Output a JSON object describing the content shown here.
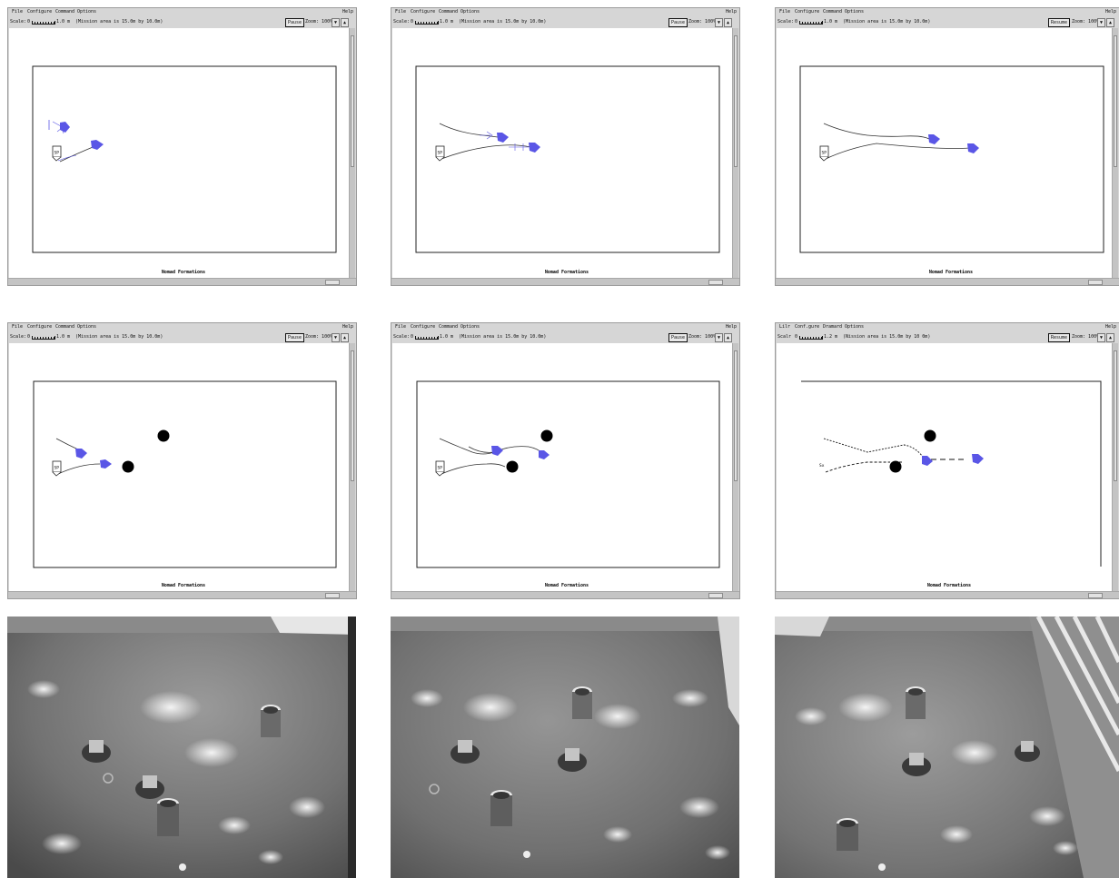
{
  "menu": {
    "file": "File",
    "configure": "Configure",
    "command": "Command",
    "options": "Options",
    "help": "Help"
  },
  "menu_blurry": {
    "file": "Lilr",
    "configure": "Conf.gure",
    "command": "Dramard",
    "options": "Options",
    "help": "Help"
  },
  "toolbar": {
    "scale_label": "Scale:",
    "scale_zero": "0",
    "scale_value": "1.0 m",
    "mission_area": "(Mission area is 15.0m by 10.0m)",
    "zoom_label": "Zoom: 100%",
    "down_arrow": "▼",
    "up_arrow": "▲"
  },
  "toolbar_blurry": {
    "scale_label": "Scalr",
    "scale_zero": "0",
    "scale_value": "1.2 m",
    "mission_area": "(Nission area is 15.0m by 10 0m)",
    "zoom_label": "Zoom: 100%"
  },
  "buttons": {
    "pause": "Pause",
    "resume": "Resume"
  },
  "mission_title": "Nomad Formations",
  "mission_title_blurry": "Nomad Formations",
  "start_marker": "SP",
  "start_marker_blurry": "Sx",
  "colors": {
    "robot": "#5a56e6",
    "obstacle": "#000000",
    "window": "#d6d6d6",
    "canvas": "#ffffff"
  },
  "icons": {
    "robot": "pentagon-robot-icon",
    "obstacle": "circle-obstacle-icon",
    "start": "start-point-marker-icon"
  }
}
